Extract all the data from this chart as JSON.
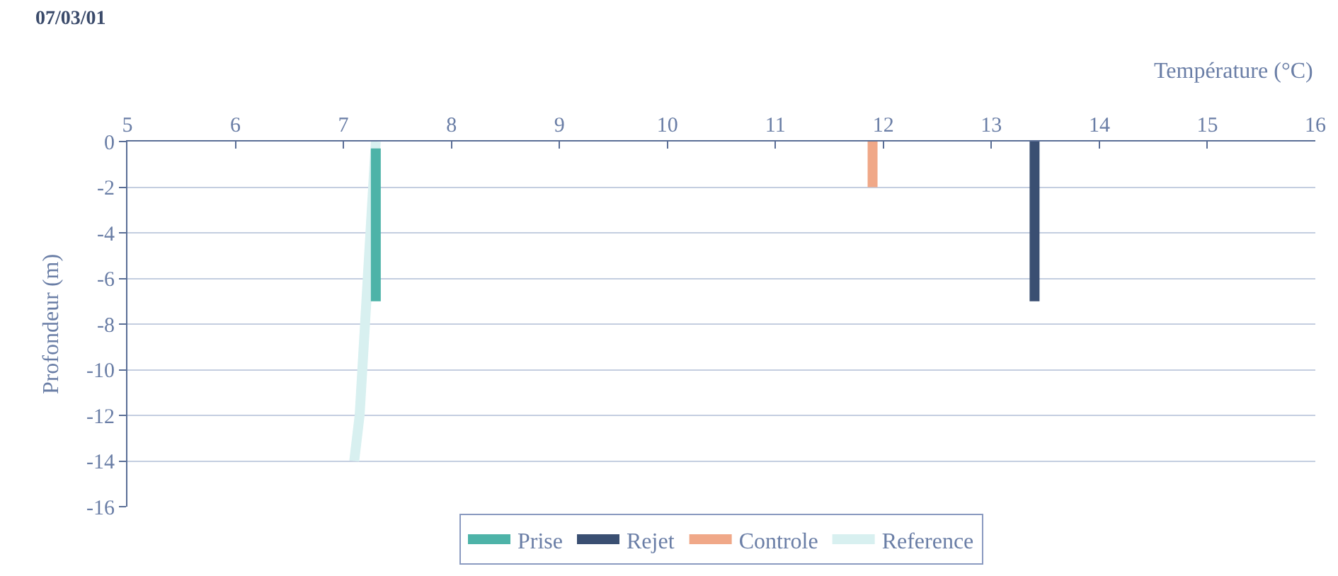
{
  "chart_data": {
    "type": "line",
    "title": "07/03/01",
    "xlabel": "Température (°C)",
    "ylabel": "Profondeur (m)",
    "xlim": [
      5,
      16
    ],
    "xticks": [
      5,
      6,
      7,
      8,
      9,
      10,
      11,
      12,
      13,
      14,
      15,
      16
    ],
    "ylim": [
      -16,
      0
    ],
    "yticks": [
      0,
      -2,
      -4,
      -6,
      -8,
      -10,
      -12,
      -14,
      -16
    ],
    "grid": "y",
    "legend": "bottom",
    "marker": "none",
    "line_style": "solid",
    "series": [
      {
        "name": "Prise",
        "color": "#4db3a8",
        "x": [
          7.3,
          7.3,
          7.3,
          7.3
        ],
        "values": [
          -0.3,
          -2,
          -4,
          -7
        ]
      },
      {
        "name": "Rejet",
        "color": "#3a4f72",
        "x": [
          13.4,
          13.4,
          13.4
        ],
        "values": [
          0,
          -4,
          -7
        ]
      },
      {
        "name": "Controle",
        "color": "#f0a888",
        "x": [
          11.9,
          11.9
        ],
        "values": [
          0,
          -2
        ]
      },
      {
        "name": "Reference",
        "color": "#d8f0f0",
        "x": [
          7.3,
          7.25,
          7.2,
          7.15,
          7.1
        ],
        "values": [
          0,
          -4,
          -8,
          -12,
          -14
        ]
      }
    ]
  }
}
